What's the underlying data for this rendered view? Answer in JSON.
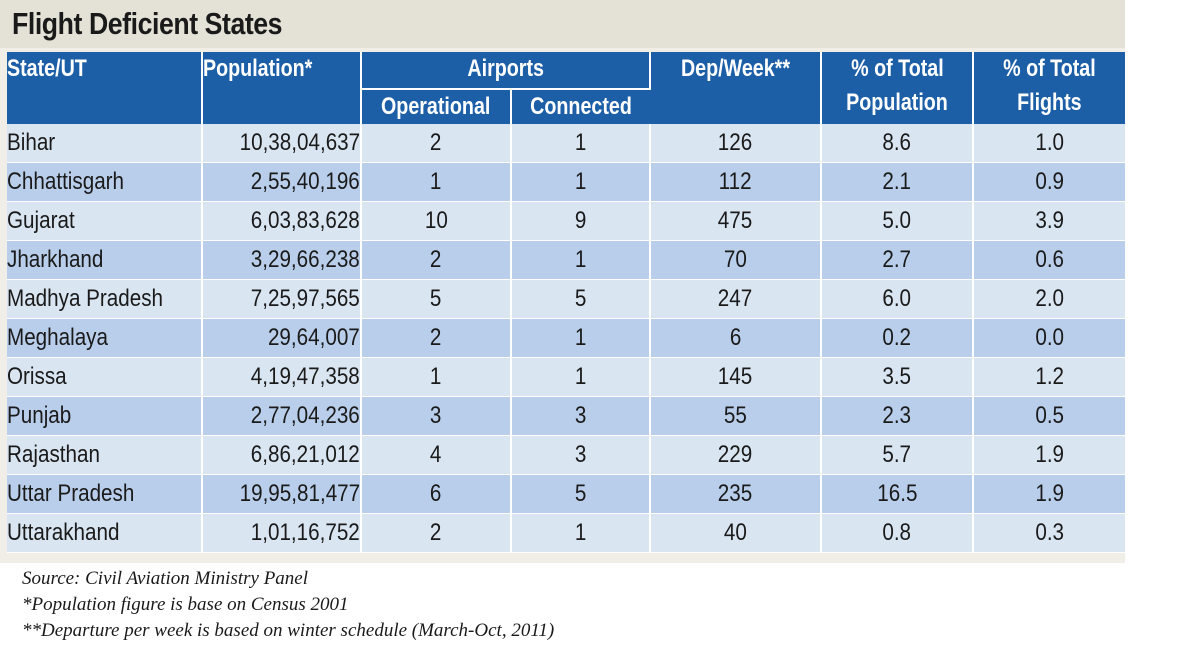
{
  "title": "Flight Deficient States",
  "headers": {
    "state": "State/UT",
    "population": "Population*",
    "airports": "Airports",
    "operational": "Operational",
    "connected": "Connected",
    "dep_week": "Dep/Week**",
    "pct_pop_1": "% of Total",
    "pct_pop_2": "Population",
    "pct_flights_1": "% of Total",
    "pct_flights_2": "Flights"
  },
  "chart_data": {
    "type": "table",
    "title": "Flight Deficient States",
    "columns": [
      "State/UT",
      "Population*",
      "Operational",
      "Connected",
      "Dep/Week**",
      "% of Total Population",
      "% of Total Flights"
    ],
    "rows": [
      [
        "Bihar",
        "10,38,04,637",
        "2",
        "1",
        "126",
        "8.6",
        "1.0"
      ],
      [
        "Chhattisgarh",
        "2,55,40,196",
        "1",
        "1",
        "112",
        "2.1",
        "0.9"
      ],
      [
        "Gujarat",
        "6,03,83,628",
        "10",
        "9",
        "475",
        "5.0",
        "3.9"
      ],
      [
        "Jharkhand",
        "3,29,66,238",
        "2",
        "1",
        "70",
        "2.7",
        "0.6"
      ],
      [
        "Madhya Pradesh",
        "7,25,97,565",
        "5",
        "5",
        "247",
        "6.0",
        "2.0"
      ],
      [
        "Meghalaya",
        "29,64,007",
        "2",
        "1",
        "6",
        "0.2",
        "0.0"
      ],
      [
        "Orissa",
        "4,19,47,358",
        "1",
        "1",
        "145",
        "3.5",
        "1.2"
      ],
      [
        "Punjab",
        "2,77,04,236",
        "3",
        "3",
        "55",
        "2.3",
        "0.5"
      ],
      [
        "Rajasthan",
        "6,86,21,012",
        "4",
        "3",
        "229",
        "5.7",
        "1.9"
      ],
      [
        "Uttar Pradesh",
        "19,95,81,477",
        "6",
        "5",
        "235",
        "16.5",
        "1.9"
      ],
      [
        "Uttarakhand",
        "1,01,16,752",
        "2",
        "1",
        "40",
        "0.8",
        "0.3"
      ]
    ]
  },
  "notes": {
    "source": "Source: Civil Aviation Ministry Panel",
    "population_note": "*Population figure is base on Census 2001",
    "departure_note": "**Departure per week is based on winter schedule (March-Oct, 2011)"
  },
  "colors": {
    "header": "#1d5fa7",
    "row_light": "#d9e6f2",
    "row_dark": "#b9ceea",
    "title_band": "#e4e1d7"
  }
}
